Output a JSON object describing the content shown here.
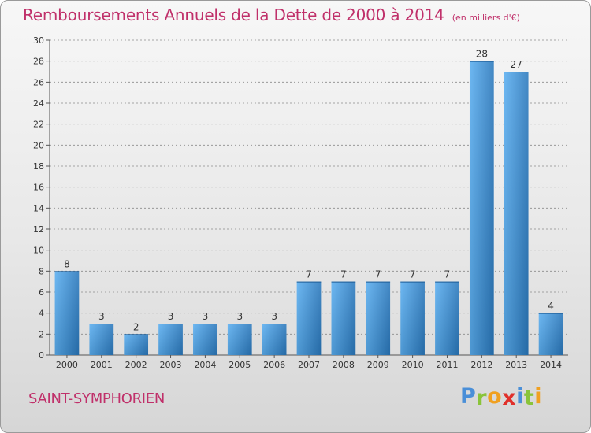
{
  "title": "Remboursements Annuels de la Dette de 2000 à 2014",
  "subtitle": "(en milliers d'€)",
  "commune": "SAINT-SYMPHORIEN",
  "logo": {
    "letters": [
      "P",
      "r",
      "o",
      "x",
      "i",
      "t",
      "i"
    ],
    "colors": [
      "#4a8fd8",
      "#8ac43a",
      "#f0a020",
      "#e0302a",
      "#4a8fd8",
      "#8ac43a",
      "#f0a020"
    ]
  },
  "colors": {
    "title": "#c0306a",
    "bar_light": "#5aaef0",
    "bar_dark": "#2a78bc",
    "grid": "#8a8a8a"
  },
  "chart_data": {
    "type": "bar",
    "title": "Remboursements Annuels de la Dette de 2000 à 2014",
    "subtitle": "(en milliers d'€)",
    "categories": [
      "2000",
      "2001",
      "2002",
      "2003",
      "2004",
      "2005",
      "2006",
      "2007",
      "2008",
      "2009",
      "2010",
      "2011",
      "2012",
      "2013",
      "2014"
    ],
    "values": [
      8,
      3,
      2,
      3,
      3,
      3,
      3,
      7,
      7,
      7,
      7,
      7,
      28,
      27,
      4
    ],
    "ylim": [
      0,
      30
    ],
    "yticks": [
      0,
      2,
      4,
      6,
      8,
      10,
      12,
      14,
      16,
      18,
      20,
      22,
      24,
      26,
      28,
      30
    ],
    "grid": "horizontal dashed",
    "legend": "none"
  }
}
